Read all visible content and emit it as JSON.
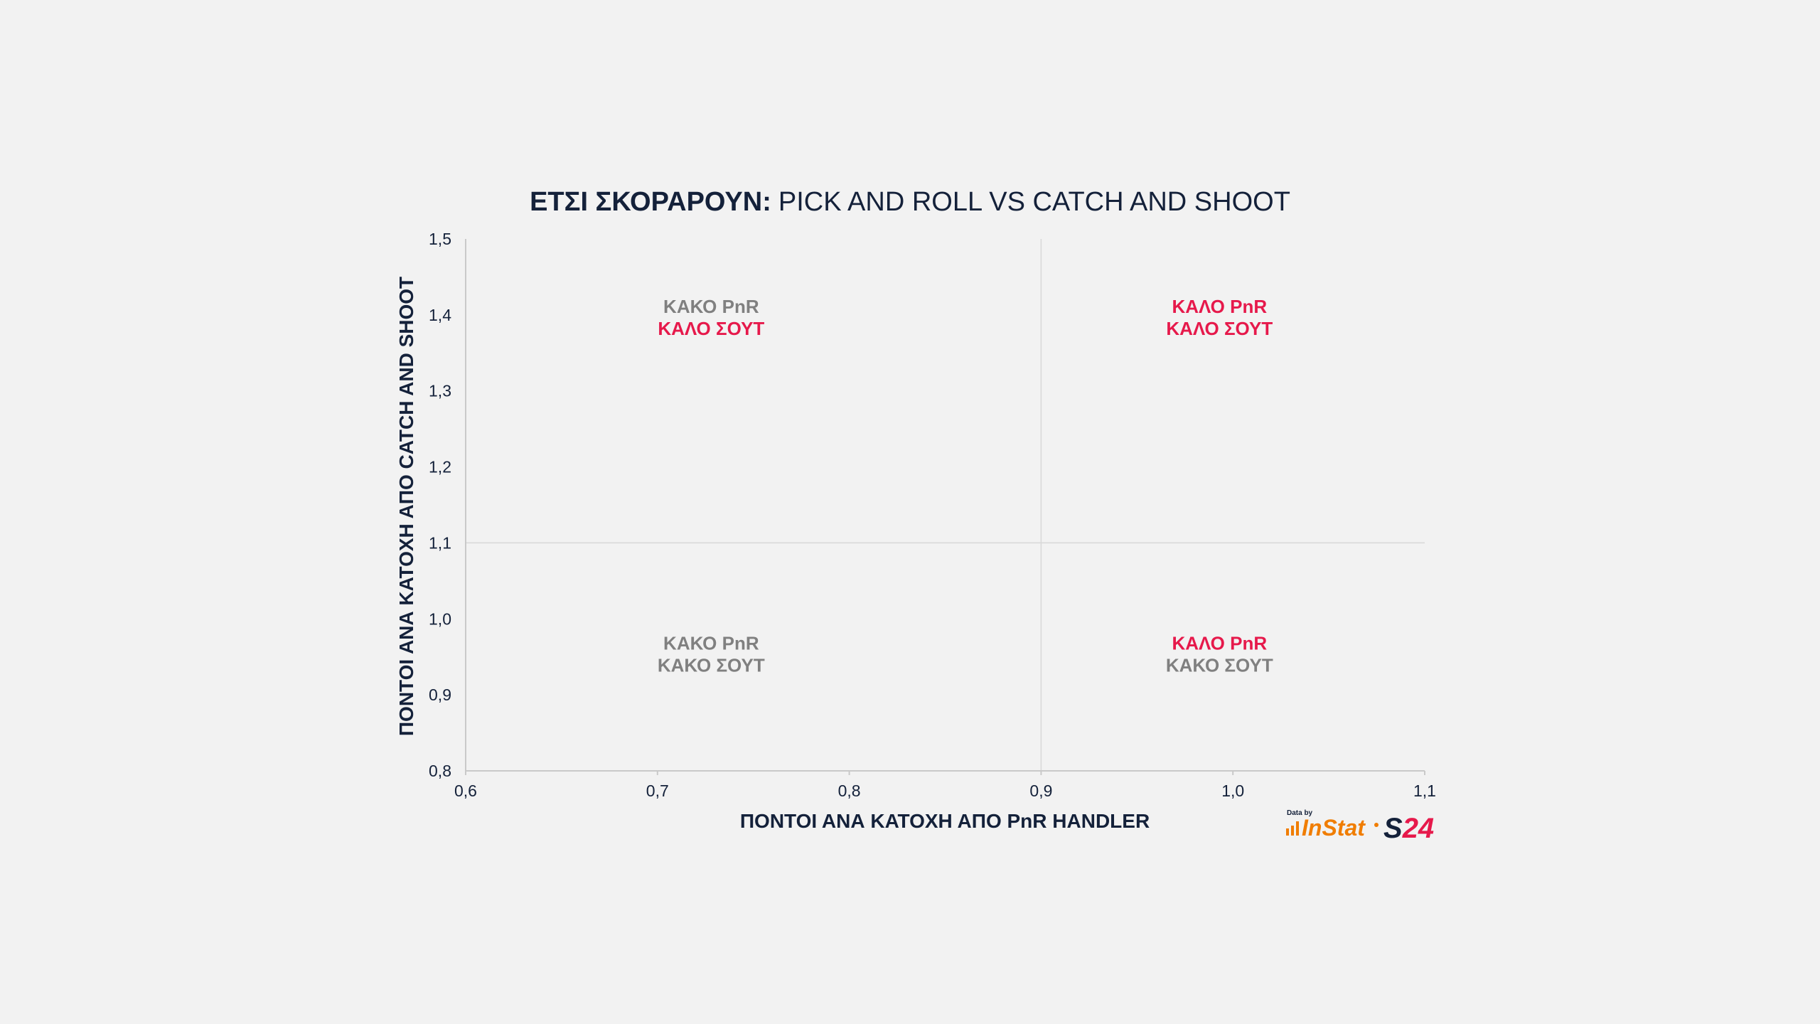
{
  "colors": {
    "background": "#f2f2f2",
    "text": "#14213a",
    "good": "#e6194b",
    "bad": "#808080",
    "axis": "#c9c9c9",
    "quadrant_line": "#d8d8d8",
    "instat_orange": "#f07d00"
  },
  "chart_data": {
    "type": "scatter",
    "title": {
      "bold": "ΕΤΣΙ ΣΚΟΡΑΡΟΥΝ:",
      "regular": "PICK AND ROLL VS CATCH AND SHOOT"
    },
    "xlabel": "ΠΟΝΤΟΙ ΑΝΑ ΚΑΤΟΧΗ ΑΠΟ PnR HANDLER",
    "ylabel": "ΠΟΝΤΟΙ ΑΝΑ ΚΑΤΟΧΗ ΑΠΟ CATCH AND SHOOT",
    "xlim": [
      0.6,
      1.1
    ],
    "ylim": [
      0.8,
      1.5
    ],
    "x_ticks": [
      0.6,
      0.7,
      0.8,
      0.9,
      1.0,
      1.1
    ],
    "x_tick_labels": [
      "0,6",
      "0,7",
      "0,8",
      "0,9",
      "1,0",
      "1,1"
    ],
    "y_ticks": [
      0.8,
      0.9,
      1.0,
      1.1,
      1.2,
      1.3,
      1.4,
      1.5
    ],
    "y_tick_labels": [
      "0,8",
      "0,9",
      "1,0",
      "1,1",
      "1,2",
      "1,3",
      "1,4",
      "1,5"
    ],
    "quadrant_lines": {
      "x": 0.9,
      "y": 1.1
    },
    "grid": false,
    "series": [],
    "quadrant_labels": [
      {
        "id": "top-left",
        "x": 0.728,
        "y": 1.395,
        "lines": [
          {
            "text": "ΚΑΚΟ PnR",
            "tone": "bad"
          },
          {
            "text": "ΚΑΛΟ ΣΟΥΤ",
            "tone": "good"
          }
        ]
      },
      {
        "id": "top-right",
        "x": 0.993,
        "y": 1.395,
        "lines": [
          {
            "text": "ΚΑΛΟ PnR",
            "tone": "good"
          },
          {
            "text": "ΚΑΛΟ ΣΟΥΤ",
            "tone": "good"
          }
        ]
      },
      {
        "id": "bottom-left",
        "x": 0.728,
        "y": 0.952,
        "lines": [
          {
            "text": "ΚΑΚΟ PnR",
            "tone": "bad"
          },
          {
            "text": "ΚΑΚΟ ΣΟΥΤ",
            "tone": "bad"
          }
        ]
      },
      {
        "id": "bottom-right",
        "x": 0.993,
        "y": 0.952,
        "lines": [
          {
            "text": "ΚΑΛΟ PnR",
            "tone": "good"
          },
          {
            "text": "ΚΑΚΟ ΣΟΥΤ",
            "tone": "bad"
          }
        ]
      }
    ]
  },
  "credits": {
    "data_by": "Data by",
    "instat_logo": "InStat",
    "s24_logo": "S24",
    "icon": "bar-chart-icon"
  }
}
